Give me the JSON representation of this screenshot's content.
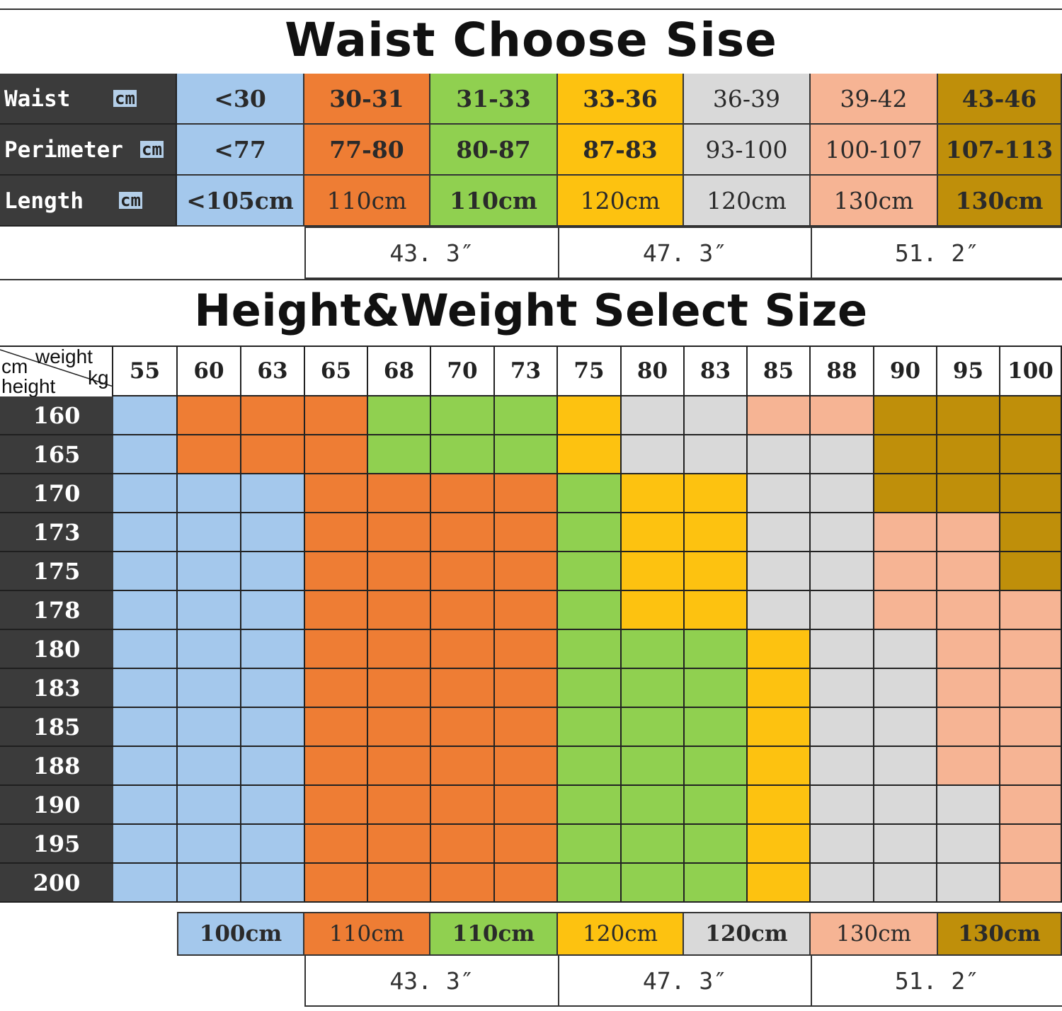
{
  "titles": {
    "waist": "Waist Choose Sise",
    "height_weight": "Height&Weight Select Size"
  },
  "colors": {
    "B": "#a4c8ec",
    "O": "#ee7d34",
    "G": "#90d050",
    "Y": "#fdc210",
    "W": "#d9d9d9",
    "P": "#f6b494",
    "K": "#bf8f0a",
    "label_bg": "#3b3b3b"
  },
  "waist_table": {
    "rows": [
      {
        "label": "Waist",
        "unit": "cm",
        "values": [
          "<30",
          "30-31",
          "31-33",
          "33-36",
          "36-39",
          "39-42",
          "43-46"
        ]
      },
      {
        "label": "Perimeter",
        "unit": "cm",
        "values": [
          "<77",
          "77-80",
          "80-87",
          "87-83",
          "93-100",
          "100-107",
          "107-113"
        ]
      },
      {
        "label": "Length",
        "unit": "cm",
        "values": [
          "<105cm",
          "110cm",
          "110cm",
          "120cm",
          "120cm",
          "130cm",
          "130cm"
        ]
      }
    ],
    "column_colors": [
      "B",
      "O",
      "G",
      "Y",
      "W",
      "P",
      "K"
    ],
    "inches": [
      "43. 3″",
      "47. 3″",
      "51. 2″"
    ]
  },
  "size_grid": {
    "corner": {
      "top_unit": "cm",
      "weight": "weight",
      "kg": "kg",
      "height": "height"
    },
    "weights": [
      "55",
      "60",
      "63",
      "65",
      "68",
      "70",
      "73",
      "75",
      "80",
      "83",
      "85",
      "88",
      "90",
      "95",
      "100"
    ],
    "rows": [
      {
        "height": "160",
        "cells": [
          "B",
          "O",
          "O",
          "O",
          "G",
          "G",
          "G",
          "Y",
          "W",
          "W",
          "P",
          "P",
          "K",
          "K",
          "K"
        ]
      },
      {
        "height": "165",
        "cells": [
          "B",
          "O",
          "O",
          "O",
          "G",
          "G",
          "G",
          "Y",
          "W",
          "W",
          "W",
          "W",
          "K",
          "K",
          "K"
        ]
      },
      {
        "height": "170",
        "cells": [
          "B",
          "B",
          "B",
          "O",
          "O",
          "O",
          "O",
          "G",
          "Y",
          "Y",
          "W",
          "W",
          "K",
          "K",
          "K"
        ]
      },
      {
        "height": "173",
        "cells": [
          "B",
          "B",
          "B",
          "O",
          "O",
          "O",
          "O",
          "G",
          "Y",
          "Y",
          "W",
          "W",
          "P",
          "P",
          "K"
        ]
      },
      {
        "height": "175",
        "cells": [
          "B",
          "B",
          "B",
          "O",
          "O",
          "O",
          "O",
          "G",
          "Y",
          "Y",
          "W",
          "W",
          "P",
          "P",
          "K"
        ]
      },
      {
        "height": "178",
        "cells": [
          "B",
          "B",
          "B",
          "O",
          "O",
          "O",
          "O",
          "G",
          "Y",
          "Y",
          "W",
          "W",
          "P",
          "P",
          "P"
        ]
      },
      {
        "height": "180",
        "cells": [
          "B",
          "B",
          "B",
          "O",
          "O",
          "O",
          "O",
          "G",
          "G",
          "G",
          "Y",
          "W",
          "W",
          "P",
          "P"
        ]
      },
      {
        "height": "183",
        "cells": [
          "B",
          "B",
          "B",
          "O",
          "O",
          "O",
          "O",
          "G",
          "G",
          "G",
          "Y",
          "W",
          "W",
          "P",
          "P"
        ]
      },
      {
        "height": "185",
        "cells": [
          "B",
          "B",
          "B",
          "O",
          "O",
          "O",
          "O",
          "G",
          "G",
          "G",
          "Y",
          "W",
          "W",
          "P",
          "P"
        ]
      },
      {
        "height": "188",
        "cells": [
          "B",
          "B",
          "B",
          "O",
          "O",
          "O",
          "O",
          "G",
          "G",
          "G",
          "Y",
          "W",
          "W",
          "P",
          "P"
        ]
      },
      {
        "height": "190",
        "cells": [
          "B",
          "B",
          "B",
          "O",
          "O",
          "O",
          "O",
          "G",
          "G",
          "G",
          "Y",
          "W",
          "W",
          "W",
          "P"
        ]
      },
      {
        "height": "195",
        "cells": [
          "B",
          "B",
          "B",
          "O",
          "O",
          "O",
          "O",
          "G",
          "G",
          "G",
          "Y",
          "W",
          "W",
          "W",
          "P"
        ]
      },
      {
        "height": "200",
        "cells": [
          "B",
          "B",
          "B",
          "O",
          "O",
          "O",
          "O",
          "G",
          "G",
          "G",
          "Y",
          "W",
          "W",
          "W",
          "P"
        ]
      }
    ]
  },
  "length_row": {
    "values": [
      "100cm",
      "110cm",
      "110cm",
      "120cm",
      "120cm",
      "130cm",
      "130cm"
    ],
    "column_colors": [
      "B",
      "O",
      "G",
      "Y",
      "W",
      "P",
      "K"
    ],
    "inches": [
      "43. 3″",
      "47. 3″",
      "51. 2″"
    ]
  }
}
